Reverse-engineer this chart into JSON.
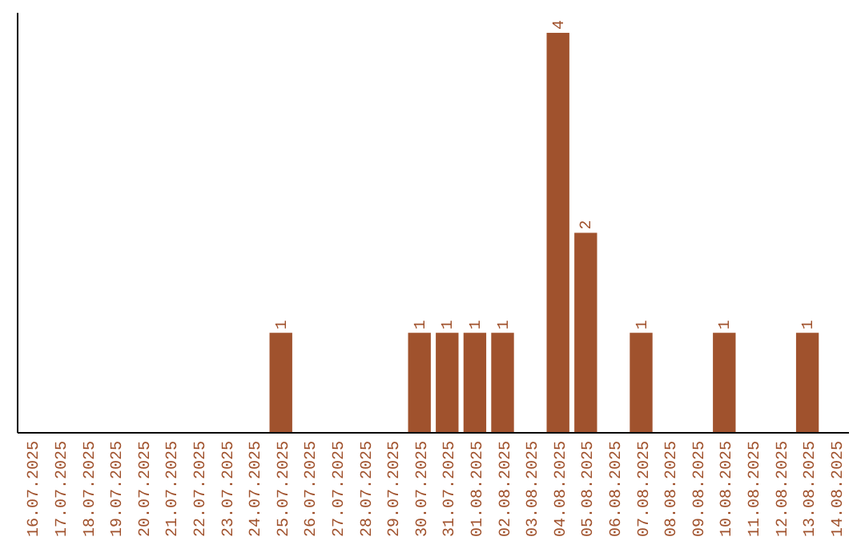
{
  "chart_data": {
    "type": "bar",
    "categories": [
      "16.07.2025",
      "17.07.2025",
      "18.07.2025",
      "19.07.2025",
      "20.07.2025",
      "21.07.2025",
      "22.07.2025",
      "23.07.2025",
      "24.07.2025",
      "25.07.2025",
      "26.07.2025",
      "27.07.2025",
      "28.07.2025",
      "29.07.2025",
      "30.07.2025",
      "31.07.2025",
      "01.08.2025",
      "02.08.2025",
      "03.08.2025",
      "04.08.2025",
      "05.08.2025",
      "06.08.2025",
      "07.08.2025",
      "08.08.2025",
      "09.08.2025",
      "10.08.2025",
      "11.08.2025",
      "12.08.2025",
      "13.08.2025",
      "14.08.2025"
    ],
    "values": [
      0,
      0,
      0,
      0,
      0,
      0,
      0,
      0,
      0,
      1,
      0,
      0,
      0,
      0,
      1,
      1,
      1,
      1,
      0,
      4,
      2,
      0,
      1,
      0,
      0,
      1,
      0,
      0,
      1,
      0
    ],
    "value_labels": [
      null,
      null,
      null,
      null,
      null,
      null,
      null,
      null,
      null,
      "1",
      null,
      null,
      null,
      null,
      "1",
      "1",
      "1",
      "1",
      null,
      "4",
      "2",
      null,
      "1",
      null,
      null,
      "1",
      null,
      null,
      "1",
      null
    ],
    "color": "#a0522d",
    "ylim": [
      0,
      4.2
    ],
    "tick_labels": "x",
    "grid": false
  }
}
